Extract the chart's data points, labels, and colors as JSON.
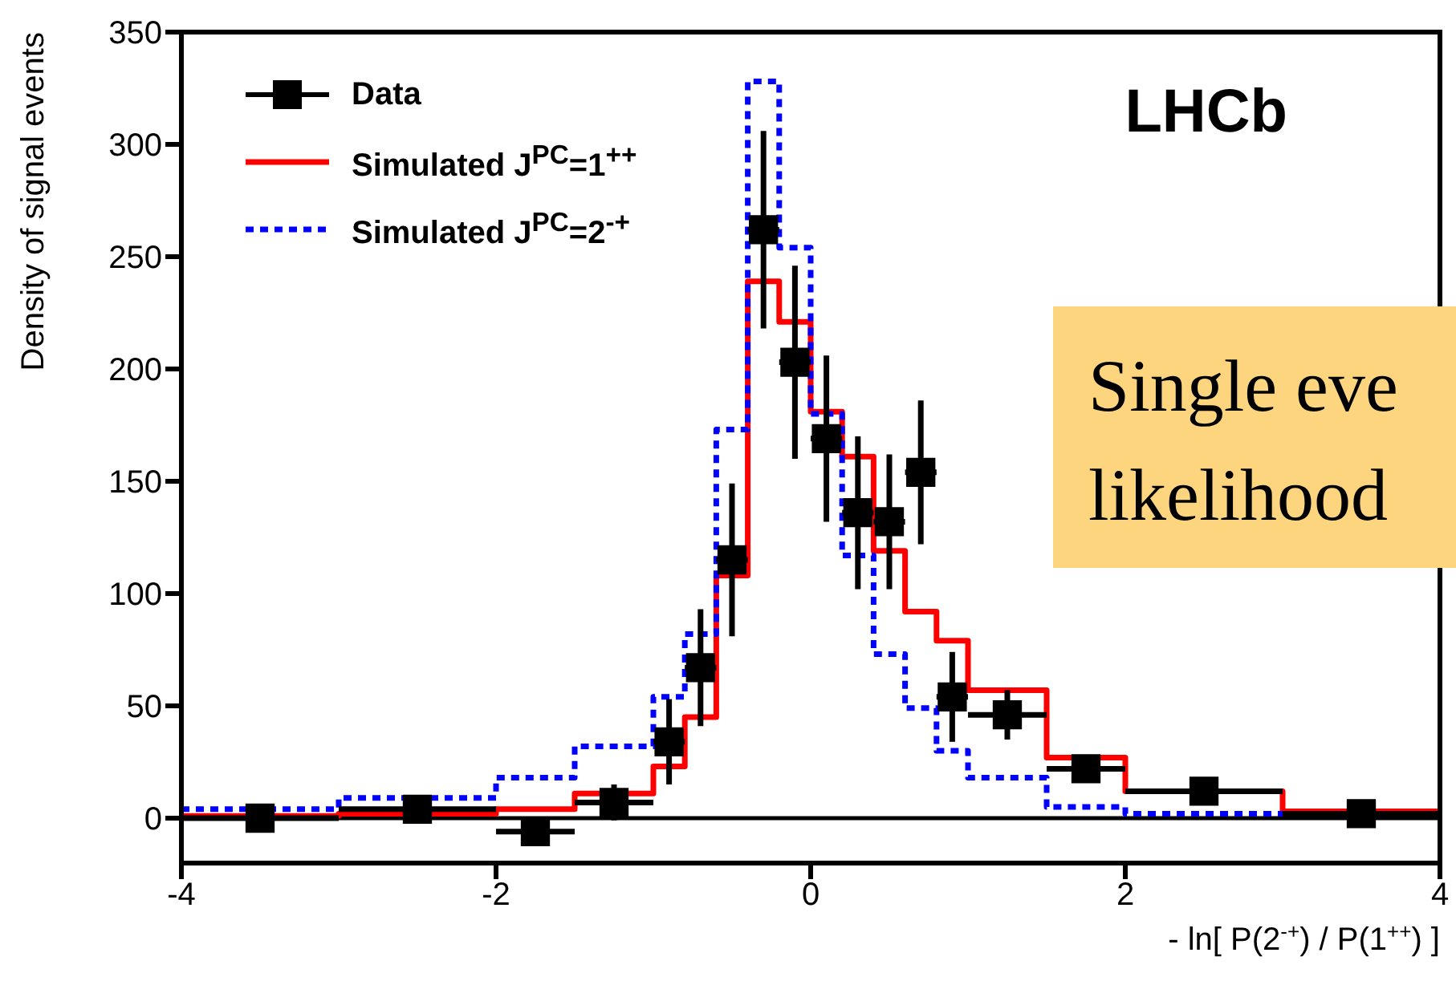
{
  "chart_data": {
    "type": "histogram",
    "ylabel": "Density of signal events",
    "xlabel": "- ln[ P(2$^{-+}$) / P(1$^{++}$) ]",
    "bins": [
      -4,
      -3,
      -2,
      -1.5,
      -1,
      -0.8,
      -0.6,
      -0.4,
      -0.2,
      0,
      0.2,
      0.4,
      0.6,
      0.8,
      1,
      1.5,
      2,
      3,
      4
    ],
    "series": [
      {
        "name": "Data",
        "type": "scatter",
        "color": "#000000",
        "marker": "square",
        "x": [
          -3.5,
          -2.5,
          -1.75,
          -1.25,
          -0.9,
          -0.7,
          -0.5,
          -0.3,
          -0.1,
          0.1,
          0.3,
          0.5,
          0.7,
          0.9,
          1.25,
          1.75,
          2.5,
          3.5
        ],
        "values": [
          0,
          4,
          -6,
          7,
          34,
          67,
          115,
          262,
          203,
          169,
          136,
          132,
          154,
          54,
          46,
          22,
          12,
          2
        ],
        "errors": [
          3,
          3,
          4,
          8,
          19,
          26,
          34,
          44,
          43,
          37,
          34,
          30,
          32,
          20,
          11,
          6,
          3,
          3
        ],
        "xerrors": [
          0.5,
          0.5,
          0.25,
          0.25,
          0.1,
          0.1,
          0.1,
          0.1,
          0.1,
          0.1,
          0.1,
          0.1,
          0.1,
          0.1,
          0.25,
          0.25,
          0.5,
          0.5
        ]
      },
      {
        "name": "Simulated J$^{PC}$=1$^{++}$",
        "color": "#ff0000",
        "line_style": "solid",
        "values": [
          1,
          2,
          4,
          11,
          23,
          45,
          108,
          239,
          221,
          181,
          161,
          119,
          92,
          79,
          57,
          27,
          12,
          3
        ]
      },
      {
        "name": "Simulated J$^{PC}$=2$^{-+}$",
        "color": "#0000ff",
        "line_style": "dotted",
        "values": [
          4,
          9,
          18,
          32,
          54,
          82,
          173,
          328,
          254,
          180,
          117,
          73,
          49,
          30,
          18,
          5,
          2,
          2
        ]
      }
    ],
    "xlim": [
      -4,
      4
    ],
    "xticks": [
      -4,
      -2,
      0,
      2,
      4
    ],
    "ylim": [
      -20,
      350
    ],
    "yticks": [
      0,
      50,
      100,
      150,
      200,
      250,
      300,
      350
    ],
    "ref_lines": [
      {
        "axis": "y",
        "value": 0,
        "color": "#000000"
      }
    ],
    "legend": "top left",
    "grid": false,
    "annotations": [
      "LHCb",
      "Single eve",
      "likelihood"
    ]
  }
}
